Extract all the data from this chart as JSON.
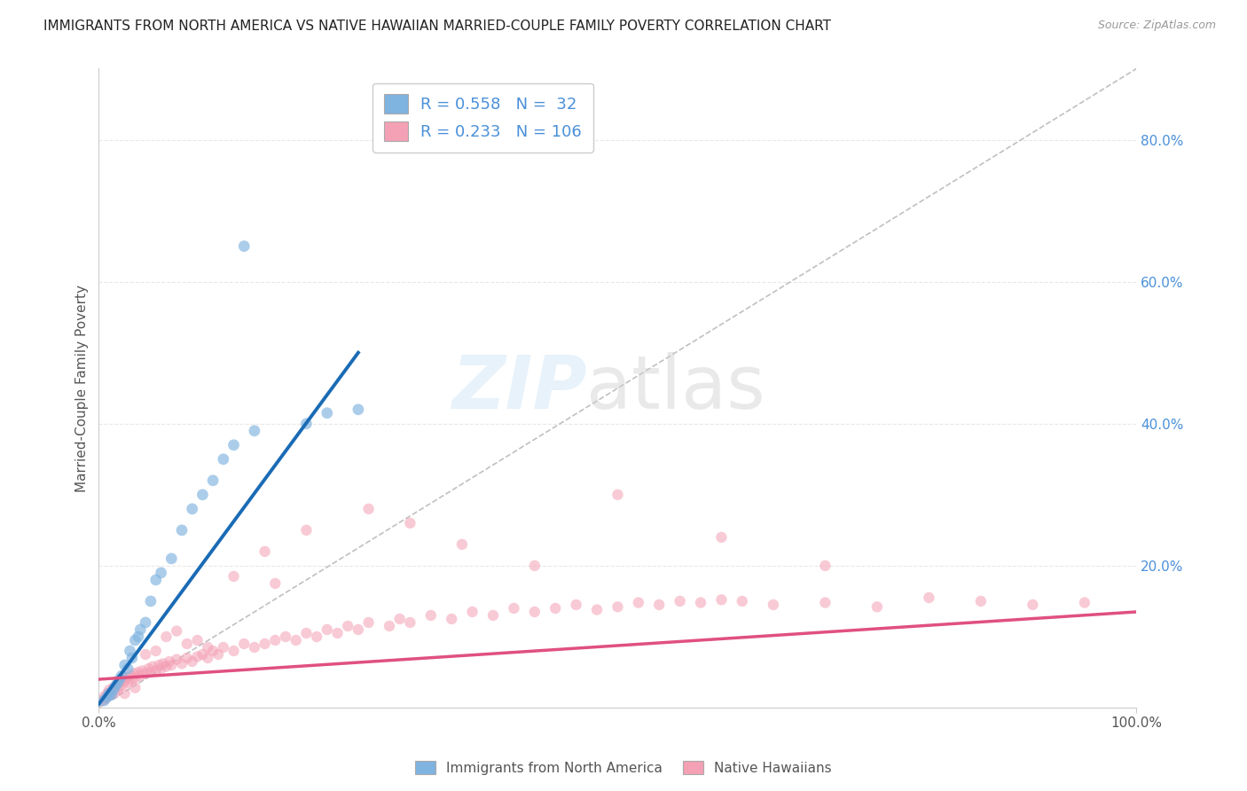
{
  "title": "IMMIGRANTS FROM NORTH AMERICA VS NATIVE HAWAIIAN MARRIED-COUPLE FAMILY POVERTY CORRELATION CHART",
  "source": "Source: ZipAtlas.com",
  "ylabel": "Married-Couple Family Poverty",
  "right_yticks": [
    0.0,
    0.2,
    0.4,
    0.6,
    0.8
  ],
  "right_yticklabels": [
    "",
    "20.0%",
    "40.0%",
    "60.0%",
    "80.0%"
  ],
  "legend_entries": [
    {
      "label": "Immigrants from North America",
      "color": "#aec6e8",
      "R": 0.558,
      "N": 32
    },
    {
      "label": "Native Hawaiians",
      "color": "#f4b8c8",
      "R": 0.233,
      "N": 106
    }
  ],
  "blue_scatter_x": [
    0.005,
    0.008,
    0.01,
    0.012,
    0.014,
    0.016,
    0.018,
    0.02,
    0.022,
    0.025,
    0.028,
    0.03,
    0.032,
    0.035,
    0.038,
    0.04,
    0.045,
    0.05,
    0.055,
    0.06,
    0.07,
    0.08,
    0.09,
    0.1,
    0.11,
    0.12,
    0.13,
    0.15,
    0.2,
    0.22,
    0.25,
    0.14
  ],
  "blue_scatter_y": [
    0.01,
    0.015,
    0.02,
    0.018,
    0.025,
    0.03,
    0.035,
    0.04,
    0.045,
    0.06,
    0.055,
    0.08,
    0.07,
    0.095,
    0.1,
    0.11,
    0.12,
    0.15,
    0.18,
    0.19,
    0.21,
    0.25,
    0.28,
    0.3,
    0.32,
    0.35,
    0.37,
    0.39,
    0.4,
    0.415,
    0.42,
    0.65
  ],
  "pink_scatter_x": [
    0.003,
    0.005,
    0.006,
    0.008,
    0.01,
    0.011,
    0.012,
    0.014,
    0.015,
    0.016,
    0.018,
    0.019,
    0.02,
    0.022,
    0.024,
    0.025,
    0.026,
    0.028,
    0.03,
    0.032,
    0.034,
    0.035,
    0.038,
    0.04,
    0.042,
    0.045,
    0.048,
    0.05,
    0.052,
    0.055,
    0.058,
    0.06,
    0.062,
    0.065,
    0.068,
    0.07,
    0.075,
    0.08,
    0.085,
    0.09,
    0.095,
    0.1,
    0.105,
    0.11,
    0.115,
    0.12,
    0.13,
    0.14,
    0.15,
    0.16,
    0.17,
    0.18,
    0.19,
    0.2,
    0.21,
    0.22,
    0.23,
    0.24,
    0.25,
    0.26,
    0.28,
    0.29,
    0.3,
    0.32,
    0.34,
    0.36,
    0.38,
    0.4,
    0.42,
    0.44,
    0.46,
    0.48,
    0.5,
    0.52,
    0.54,
    0.56,
    0.58,
    0.6,
    0.62,
    0.65,
    0.7,
    0.75,
    0.8,
    0.85,
    0.9,
    0.95,
    0.025,
    0.035,
    0.045,
    0.055,
    0.065,
    0.075,
    0.085,
    0.095,
    0.105,
    0.16,
    0.2,
    0.26,
    0.3,
    0.35,
    0.42,
    0.5,
    0.6,
    0.7,
    0.13,
    0.17
  ],
  "pink_scatter_y": [
    0.01,
    0.015,
    0.012,
    0.02,
    0.025,
    0.018,
    0.022,
    0.028,
    0.02,
    0.03,
    0.025,
    0.035,
    0.03,
    0.04,
    0.035,
    0.038,
    0.042,
    0.035,
    0.045,
    0.04,
    0.048,
    0.042,
    0.05,
    0.045,
    0.052,
    0.048,
    0.055,
    0.05,
    0.058,
    0.052,
    0.06,
    0.055,
    0.062,
    0.058,
    0.065,
    0.06,
    0.068,
    0.062,
    0.07,
    0.065,
    0.072,
    0.075,
    0.07,
    0.08,
    0.075,
    0.085,
    0.08,
    0.09,
    0.085,
    0.09,
    0.095,
    0.1,
    0.095,
    0.105,
    0.1,
    0.11,
    0.105,
    0.115,
    0.11,
    0.12,
    0.115,
    0.125,
    0.12,
    0.13,
    0.125,
    0.135,
    0.13,
    0.14,
    0.135,
    0.14,
    0.145,
    0.138,
    0.142,
    0.148,
    0.145,
    0.15,
    0.148,
    0.152,
    0.15,
    0.145,
    0.148,
    0.142,
    0.155,
    0.15,
    0.145,
    0.148,
    0.02,
    0.028,
    0.075,
    0.08,
    0.1,
    0.108,
    0.09,
    0.095,
    0.085,
    0.22,
    0.25,
    0.28,
    0.26,
    0.23,
    0.2,
    0.3,
    0.24,
    0.2,
    0.185,
    0.175
  ],
  "blue_line_x": [
    0.0,
    0.25
  ],
  "blue_line_y": [
    0.005,
    0.5
  ],
  "pink_line_x": [
    0.0,
    1.0
  ],
  "pink_line_y": [
    0.04,
    0.135
  ],
  "diag_line_x": [
    0.0,
    1.0
  ],
  "diag_line_y": [
    0.0,
    0.9
  ],
  "bg_color": "#ffffff",
  "scatter_blue_color": "#7fb3e0",
  "scatter_pink_color": "#f4a0b5",
  "line_blue_color": "#1a6bb5",
  "line_pink_color": "#e05080",
  "diag_color": "#c0c0c0",
  "grid_color": "#e8e8e8",
  "title_color": "#222222",
  "label_color": "#555555",
  "right_axis_color": "#4a90d9",
  "xlim": [
    0.0,
    1.0
  ],
  "ylim": [
    0.0,
    0.9
  ]
}
